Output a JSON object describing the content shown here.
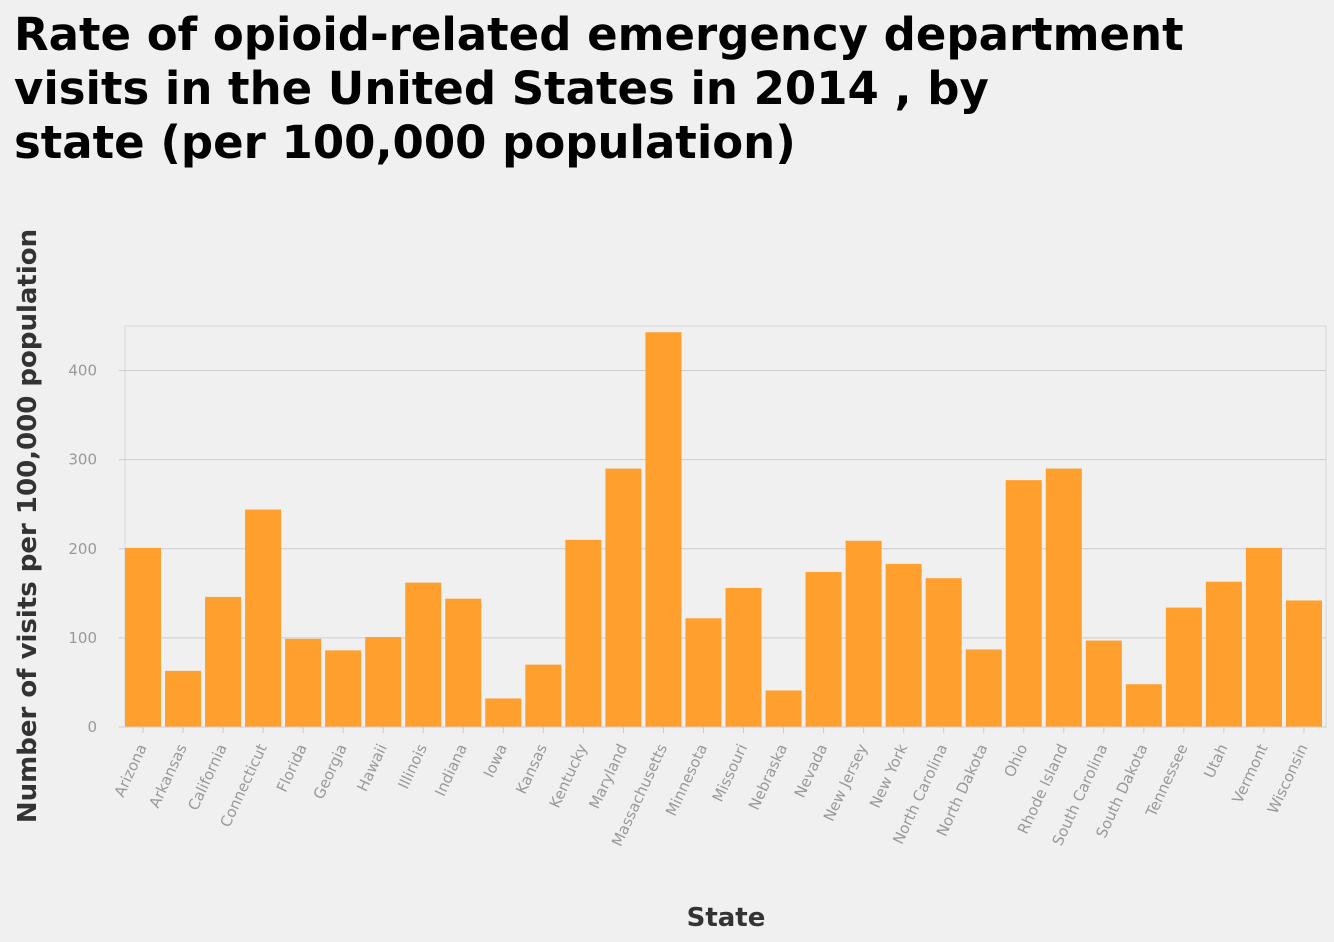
{
  "chart_data": {
    "type": "bar",
    "title_lines": [
      "Rate of opioid-related emergency department",
      "visits in the United States in 2014 , by",
      "state (per 100,000 population)"
    ],
    "xlabel": "State",
    "ylabel": "Number of visits per 100,000 population",
    "ylim": [
      0,
      450
    ],
    "yticks": [
      0,
      100,
      200,
      300,
      400
    ],
    "grid": true,
    "bar_color": "#ff9f2d",
    "categories": [
      "Arizona",
      "Arkansas",
      "California",
      "Connecticut",
      "Florida",
      "Georgia",
      "Hawaii",
      "Illinois",
      "Indiana",
      "Iowa",
      "Kansas",
      "Kentucky",
      "Maryland",
      "Massachusetts",
      "Minnesota",
      "Missouri",
      "Nebraska",
      "Nevada",
      "New Jersey",
      "New York",
      "North Carolina",
      "North Dakota",
      "Ohio",
      "Rhode Island",
      "South Carolina",
      "South Dakota",
      "Tennessee",
      "Utah",
      "Vermont",
      "Wisconsin"
    ],
    "values": [
      201,
      63,
      146,
      244,
      99,
      86,
      101,
      162,
      144,
      32,
      70,
      210,
      290,
      443,
      122,
      156,
      41,
      174,
      209,
      183,
      167,
      87,
      277,
      290,
      97,
      48,
      134,
      163,
      201,
      142
    ]
  }
}
